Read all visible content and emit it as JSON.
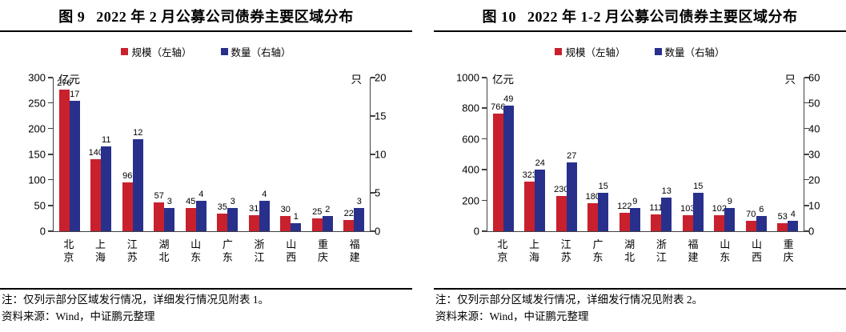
{
  "chart_data": [
    {
      "type": "bar",
      "figure_label": "图 9",
      "title": "2022 年 2 月公募公司债券主要区域分布",
      "legend": [
        {
          "label": "规模（左轴）",
          "color": "#c9202e"
        },
        {
          "label": "数量（右轴）",
          "color": "#28308c"
        }
      ],
      "left_axis": {
        "unit": "亿元",
        "min": 0,
        "max": 300,
        "ticks": [
          300,
          250,
          200,
          150,
          100,
          50,
          0
        ]
      },
      "right_axis": {
        "unit": "只",
        "min": 0,
        "max": 20,
        "ticks": [
          20,
          15,
          10,
          5,
          0
        ]
      },
      "categories": [
        "北京",
        "上海",
        "江苏",
        "湖北",
        "山东",
        "广东",
        "浙江",
        "山西",
        "重庆",
        "福建"
      ],
      "series": [
        {
          "name": "规模（左轴）",
          "axis": "left",
          "color": "#c9202e",
          "values": [
            276,
            140,
            96,
            57,
            45,
            35,
            31,
            30,
            25,
            22
          ]
        },
        {
          "name": "数量（右轴）",
          "axis": "right",
          "color": "#28308c",
          "values": [
            17,
            11,
            12,
            3,
            4,
            3,
            4,
            1,
            2,
            3
          ]
        }
      ],
      "note": "注：仅列示部分区域发行情况，详细发行情况见附表 1。",
      "source": "资料来源：Wind，中证鹏元整理"
    },
    {
      "type": "bar",
      "figure_label": "图 10",
      "title": "2022 年 1-2 月公募公司债券主要区域分布",
      "legend": [
        {
          "label": "规模（左轴）",
          "color": "#c9202e"
        },
        {
          "label": "数量（右轴）",
          "color": "#28308c"
        }
      ],
      "left_axis": {
        "unit": "亿元",
        "min": 0,
        "max": 1000,
        "ticks": [
          1000,
          800,
          600,
          400,
          200,
          0
        ]
      },
      "right_axis": {
        "unit": "只",
        "min": 0,
        "max": 60,
        "ticks": [
          60,
          50,
          40,
          30,
          20,
          10,
          0
        ]
      },
      "categories": [
        "北京",
        "上海",
        "江苏",
        "广东",
        "湖北",
        "浙江",
        "福建",
        "山东",
        "山西",
        "重庆"
      ],
      "series": [
        {
          "name": "规模（左轴）",
          "axis": "left",
          "color": "#c9202e",
          "values": [
            766,
            323,
            230,
            180,
            122,
            111,
            103,
            102,
            70,
            53
          ]
        },
        {
          "name": "数量（右轴）",
          "axis": "right",
          "color": "#28308c",
          "values": [
            49,
            24,
            27,
            15,
            9,
            13,
            15,
            9,
            6,
            4
          ]
        }
      ],
      "note": "注：仅列示部分区域发行情况，详细发行情况见附表 2。",
      "source": "资料来源：Wind，中证鹏元整理"
    }
  ]
}
